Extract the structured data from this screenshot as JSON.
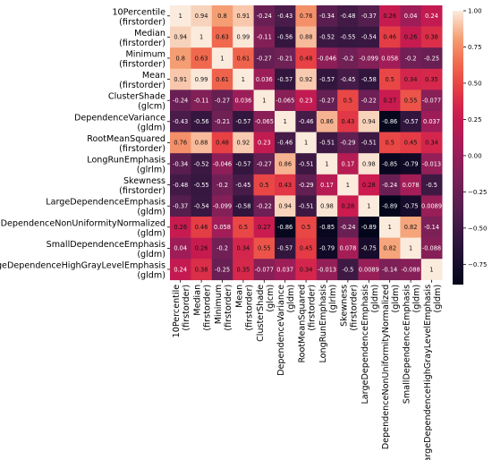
{
  "chart_data": {
    "type": "heatmap",
    "title": "",
    "row_labels": [
      [
        "10Percentile",
        "(firstorder)"
      ],
      [
        "Median",
        "(firstorder)"
      ],
      [
        "Minimum",
        "(firstorder)"
      ],
      [
        "Mean",
        "(firstorder)"
      ],
      [
        "ClusterShade",
        "(glcm)"
      ],
      [
        "DependenceVariance",
        "(gldm)"
      ],
      [
        "RootMeanSquared",
        "(firstorder)"
      ],
      [
        "LongRunEmphasis",
        "(glrlm)"
      ],
      [
        "Skewness",
        "(firstorder)"
      ],
      [
        "LargeDependenceEmphasis",
        "(gldm)"
      ],
      [
        "DependenceNonUniformityNormalized",
        "(gldm)"
      ],
      [
        "SmallDependenceEmphasis",
        "(gldm)"
      ],
      [
        "LargeDependenceHighGrayLevelEmphasis",
        "(gldm)"
      ]
    ],
    "col_labels": [
      [
        "10Percentile",
        "(firstorder)"
      ],
      [
        "Median",
        "(firstorder)"
      ],
      [
        "Minimum",
        "(firstorder)"
      ],
      [
        "Mean",
        "(firstorder)"
      ],
      [
        "ClusterShade",
        "(glcm)"
      ],
      [
        "DependenceVariance",
        "(gldm)"
      ],
      [
        "RootMeanSquared",
        "(firstorder)"
      ],
      [
        "LongRunEmphasis",
        "(glrlm)"
      ],
      [
        "Skewness",
        "(firstorder)"
      ],
      [
        "LargeDependenceEmphasis",
        "(gldm)"
      ],
      [
        "DependenceNonUniformityNormalized",
        "(gldm)"
      ],
      [
        "SmallDependenceEmphasis",
        "(gldm)"
      ],
      [
        "LargeDependenceHighGrayLevelEmphasis",
        "(gldm)"
      ]
    ],
    "values": [
      [
        1,
        0.94,
        0.8,
        0.91,
        -0.24,
        -0.43,
        0.76,
        -0.34,
        -0.48,
        -0.37,
        0.26,
        0.04,
        0.24
      ],
      [
        0.94,
        1,
        0.63,
        0.99,
        -0.11,
        -0.56,
        0.88,
        -0.52,
        -0.55,
        -0.54,
        0.46,
        0.26,
        0.38
      ],
      [
        0.8,
        0.63,
        1,
        0.61,
        -0.27,
        -0.21,
        0.48,
        -0.046,
        -0.2,
        -0.099,
        0.058,
        -0.2,
        -0.25
      ],
      [
        0.91,
        0.99,
        0.61,
        1,
        0.036,
        -0.57,
        0.92,
        -0.57,
        -0.45,
        -0.58,
        0.5,
        0.34,
        0.35
      ],
      [
        -0.24,
        -0.11,
        -0.27,
        0.036,
        1,
        -0.065,
        0.23,
        -0.27,
        0.5,
        -0.22,
        0.27,
        0.55,
        -0.077
      ],
      [
        -0.43,
        -0.56,
        -0.21,
        -0.57,
        -0.065,
        1,
        -0.46,
        0.86,
        0.43,
        0.94,
        -0.86,
        -0.57,
        0.037
      ],
      [
        0.76,
        0.88,
        0.48,
        0.92,
        0.23,
        -0.46,
        1,
        -0.51,
        -0.29,
        -0.51,
        0.5,
        0.45,
        0.34
      ],
      [
        -0.34,
        -0.52,
        -0.046,
        -0.57,
        -0.27,
        0.86,
        -0.51,
        1,
        0.17,
        0.98,
        -0.85,
        -0.79,
        -0.013
      ],
      [
        -0.48,
        -0.55,
        -0.2,
        -0.45,
        0.5,
        0.43,
        -0.29,
        0.17,
        1,
        0.28,
        -0.24,
        0.078,
        -0.5
      ],
      [
        -0.37,
        -0.54,
        -0.099,
        -0.58,
        -0.22,
        0.94,
        -0.51,
        0.98,
        0.28,
        1,
        -0.89,
        -0.75,
        0.0089
      ],
      [
        0.26,
        0.46,
        0.058,
        0.5,
        0.27,
        -0.86,
        0.5,
        -0.85,
        -0.24,
        -0.89,
        1,
        0.82,
        -0.14
      ],
      [
        0.04,
        0.26,
        -0.2,
        0.34,
        0.55,
        -0.57,
        0.45,
        -0.79,
        0.078,
        -0.75,
        0.82,
        1,
        -0.088
      ],
      [
        0.24,
        0.38,
        -0.25,
        0.35,
        -0.077,
        0.037,
        0.34,
        -0.013,
        -0.5,
        0.0089,
        -0.14,
        -0.088,
        1
      ]
    ],
    "colorbar": {
      "range": [
        -0.89,
        1.0
      ],
      "ticks": [
        1.0,
        0.75,
        0.5,
        0.25,
        0.0,
        -0.25,
        -0.5,
        -0.75
      ],
      "tick_labels": [
        "1.00",
        "0.75",
        "0.50",
        "0.25",
        "0.00",
        "−0.25",
        "−0.50",
        "−0.75"
      ],
      "colormap": "rocket"
    }
  }
}
